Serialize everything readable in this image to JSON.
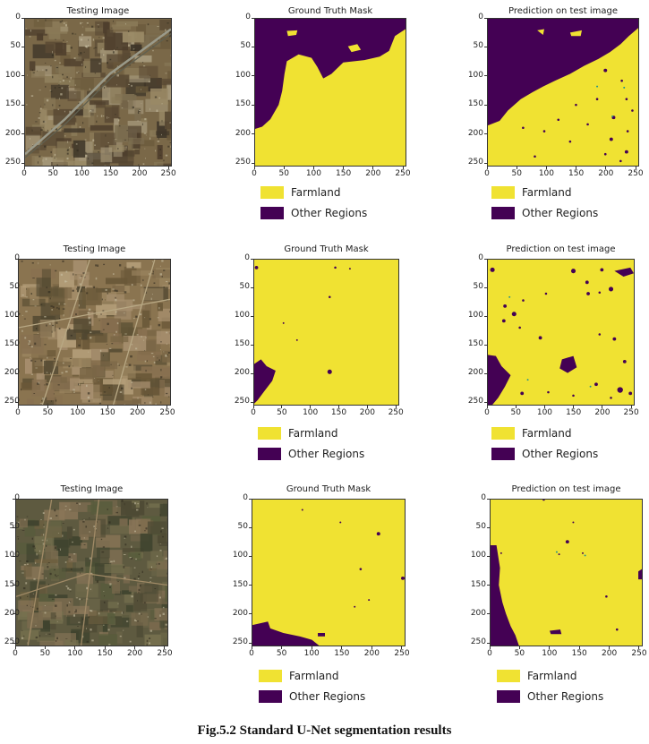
{
  "figure": {
    "caption": "Fig.5.2 Standard U-Net segmentation results"
  },
  "colors": {
    "farmland": "#F0E232",
    "other_regions": "#440154",
    "accent": "#21918C"
  },
  "legend": {
    "farmland": "Farmland",
    "other_regions": "Other Regions"
  },
  "rows": [
    {
      "testing": {
        "title": "Testing Image",
        "kind": "satellite-urban"
      },
      "truth": {
        "title": "Ground Truth Mask",
        "kind": "mask-truth-1"
      },
      "pred": {
        "title": "Prediction on test image",
        "kind": "mask-pred-1"
      },
      "x_ticks": [
        "0",
        "50",
        "100",
        "150",
        "200",
        "250"
      ],
      "y_ticks": [
        "0",
        "50",
        "100",
        "150",
        "200",
        "250"
      ]
    },
    {
      "testing": {
        "title": "Testing Image",
        "kind": "satellite-fields"
      },
      "truth": {
        "title": "Ground Truth Mask",
        "kind": "mask-truth-2"
      },
      "pred": {
        "title": "Prediction on test image",
        "kind": "mask-pred-2"
      },
      "x_ticks": [
        "0",
        "50",
        "100",
        "150",
        "200",
        "250"
      ],
      "y_ticks": [
        "0",
        "50",
        "100",
        "150",
        "200",
        "250"
      ]
    },
    {
      "testing": {
        "title": "Testing Image",
        "kind": "satellite-green"
      },
      "truth": {
        "title": "Ground Truth Mask",
        "kind": "mask-truth-3"
      },
      "pred": {
        "title": "Prediction on test image",
        "kind": "mask-pred-3"
      },
      "x_ticks": [
        "0",
        "50",
        "100",
        "150",
        "200",
        "250"
      ],
      "y_ticks": [
        "0",
        "50",
        "100",
        "150",
        "200",
        "250"
      ]
    }
  ]
}
